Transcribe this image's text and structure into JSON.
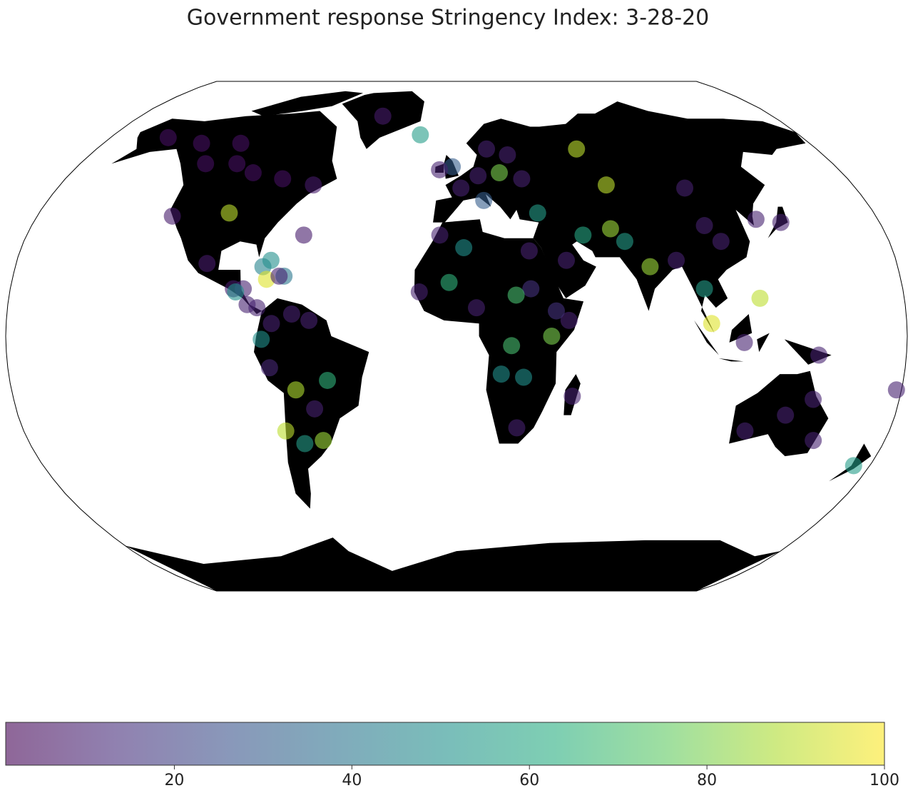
{
  "chart_data": {
    "type": "map",
    "title": "Government response Stringency Index: 3-28-20",
    "projection": "robinson",
    "land_color": "#000000",
    "colormap": "viridis",
    "alpha": 0.6,
    "points": {
      "lon": [
        -98,
        -120,
        -105,
        -95,
        -80,
        -65,
        -130,
        -110,
        -150,
        -102,
        -122,
        -79,
        -77,
        -70,
        -72,
        -76,
        -64,
        -90,
        -86,
        -89,
        -84,
        -80,
        -66,
        -74,
        -59,
        -78,
        -75,
        -65,
        -52,
        -58,
        -71,
        -64,
        -56,
        -42,
        -19,
        -2,
        -8,
        2,
        10,
        20,
        15,
        25,
        30,
        12,
        60,
        68,
        35,
        53,
        70,
        65,
        79,
        90,
        105,
        110,
        103,
        138,
        128,
        100,
        102,
        122,
        115,
        145,
        135,
        120,
        150,
        145,
        173,
        178,
        -7,
        3,
        -3,
        8,
        30,
        30,
        24,
        38,
        22,
        18,
        27,
        25,
        47,
        45,
        45,
        -15,
        40
      ],
      "lat": [
        39,
        55,
        55,
        52,
        50,
        48,
        62,
        62,
        64,
        23,
        38,
        22,
        18,
        19,
        19,
        24,
        32,
        15,
        15,
        14,
        10,
        9,
        7,
        4,
        5,
        -1,
        -10,
        -17,
        -14,
        -23,
        -30,
        -34,
        -33,
        72,
        65,
        54,
        53,
        47,
        51,
        52,
        60,
        58,
        50,
        43,
        60,
        48,
        39,
        32,
        30,
        34,
        22,
        24,
        35,
        30,
        47,
        36,
        37,
        15,
        4,
        12,
        -2,
        -6,
        -25,
        -30,
        -33,
        -20,
        -41,
        -17,
        32,
        28,
        17,
        9,
        27,
        15,
        13,
        0,
        -3,
        -12,
        -13,
        -29,
        -19,
        5,
        24,
        14,
        8
      ],
      "values": [
        90,
        5,
        5,
        5,
        5,
        8,
        5,
        5,
        5,
        8,
        8,
        45,
        95,
        40,
        10,
        50,
        8,
        8,
        10,
        50,
        10,
        10,
        10,
        10,
        10,
        50,
        12,
        88,
        65,
        10,
        90,
        55,
        85,
        8,
        55,
        30,
        10,
        10,
        10,
        80,
        10,
        10,
        10,
        30,
        90,
        90,
        55,
        60,
        55,
        85,
        85,
        10,
        10,
        10,
        10,
        10,
        10,
        55,
        95,
        90,
        10,
        10,
        10,
        10,
        10,
        10,
        55,
        10,
        10,
        50,
        65,
        10,
        10,
        15,
        70,
        80,
        70,
        50,
        50,
        10,
        10,
        10,
        10,
        10,
        15
      ]
    },
    "colorbar": {
      "lim": [
        1,
        100
      ],
      "ticks": [
        20,
        40,
        60,
        80,
        100
      ]
    }
  }
}
